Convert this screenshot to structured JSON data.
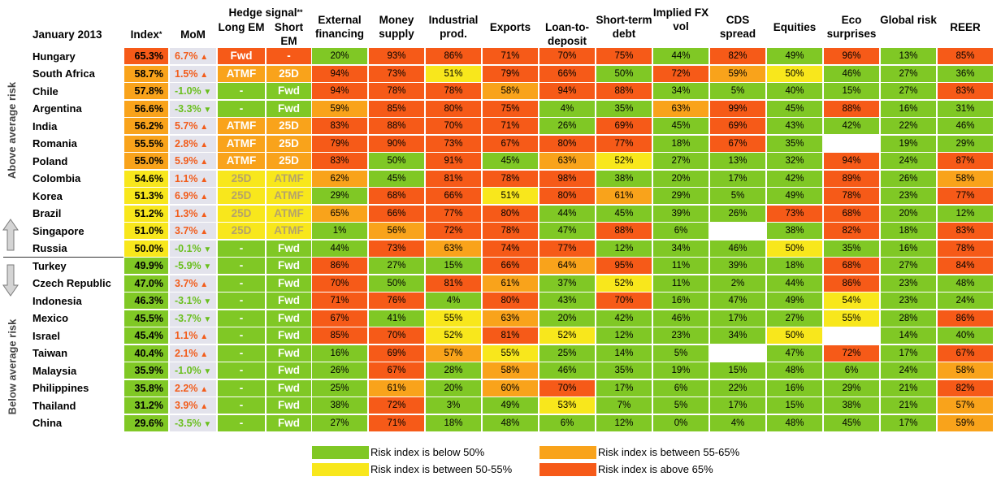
{
  "colors": {
    "green": "#80c825",
    "yellow": "#f8e71c",
    "orange": "#f9a31b",
    "red": "#f65a18",
    "white": "#ffffff",
    "mom_bg": "#e3e3ec",
    "up": "#f25d1c",
    "down": "#6abf1e",
    "hedge_muted": "#b5a36a"
  },
  "side_labels": {
    "above": "Above average risk",
    "below": "Below average risk"
  },
  "headers": {
    "corner": "January 2013",
    "index": "Index",
    "index_sup": "*",
    "mom": "MoM",
    "hedge_title": "Hedge signal",
    "hedge_sup": "**",
    "long_em": "Long EM",
    "short_em": "Short EM",
    "columns": [
      "External financing",
      "Money supply",
      "Industrial prod.",
      "Exports",
      "Loan-to-deposit",
      "Short-term debt",
      "Implied FX vol",
      "CDS spread",
      "Equities",
      "Eco surprises",
      "Global risk",
      "REER"
    ]
  },
  "legend": [
    {
      "color": "green",
      "label": "Risk index is below 50%"
    },
    {
      "color": "yellow",
      "label": "Risk index is between 50-55%"
    },
    {
      "color": "orange",
      "label": "Risk index is between 55-65%"
    },
    {
      "color": "red",
      "label": "Risk index is above 65%"
    }
  ],
  "chart_data": {
    "type": "table",
    "title": "January 2013",
    "rows": [
      {
        "country": "Hungary",
        "index": "65.3%",
        "index_color": "red",
        "mom": "6.7%",
        "mom_dir": "up",
        "long": "Fwd",
        "long_color": "red",
        "short": "-",
        "short_color": "red",
        "values": [
          "20%",
          "93%",
          "86%",
          "71%",
          "70%",
          "75%",
          "44%",
          "82%",
          "49%",
          "96%",
          "13%",
          "85%"
        ],
        "colors": [
          "green",
          "red",
          "red",
          "red",
          "red",
          "red",
          "green",
          "red",
          "green",
          "red",
          "green",
          "red"
        ]
      },
      {
        "country": "South Africa",
        "index": "58.7%",
        "index_color": "orange",
        "mom": "1.5%",
        "mom_dir": "up",
        "long": "ATMF",
        "long_color": "orange",
        "short": "25D",
        "short_color": "orange",
        "values": [
          "94%",
          "73%",
          "51%",
          "79%",
          "66%",
          "50%",
          "72%",
          "59%",
          "50%",
          "46%",
          "27%",
          "36%"
        ],
        "colors": [
          "red",
          "red",
          "yellow",
          "red",
          "red",
          "green",
          "red",
          "orange",
          "yellow",
          "green",
          "green",
          "green"
        ]
      },
      {
        "country": "Chile",
        "index": "57.8%",
        "index_color": "orange",
        "mom": "-1.0%",
        "mom_dir": "down",
        "long": "-",
        "long_color": "green",
        "short": "Fwd",
        "short_color": "green",
        "values": [
          "94%",
          "78%",
          "78%",
          "58%",
          "94%",
          "88%",
          "34%",
          "5%",
          "40%",
          "15%",
          "27%",
          "83%"
        ],
        "colors": [
          "red",
          "red",
          "red",
          "orange",
          "red",
          "red",
          "green",
          "green",
          "green",
          "green",
          "green",
          "red"
        ]
      },
      {
        "country": "Argentina",
        "index": "56.6%",
        "index_color": "orange",
        "mom": "-3.3%",
        "mom_dir": "down",
        "long": "-",
        "long_color": "green",
        "short": "Fwd",
        "short_color": "green",
        "values": [
          "59%",
          "85%",
          "80%",
          "75%",
          "4%",
          "35%",
          "63%",
          "99%",
          "45%",
          "88%",
          "16%",
          "31%"
        ],
        "colors": [
          "orange",
          "red",
          "red",
          "red",
          "green",
          "green",
          "orange",
          "red",
          "green",
          "red",
          "green",
          "green"
        ]
      },
      {
        "country": "India",
        "index": "56.2%",
        "index_color": "orange",
        "mom": "5.7%",
        "mom_dir": "up",
        "long": "ATMF",
        "long_color": "orange",
        "short": "25D",
        "short_color": "orange",
        "values": [
          "83%",
          "88%",
          "70%",
          "71%",
          "26%",
          "69%",
          "45%",
          "69%",
          "43%",
          "42%",
          "22%",
          "46%"
        ],
        "colors": [
          "red",
          "red",
          "red",
          "red",
          "green",
          "red",
          "green",
          "red",
          "green",
          "green",
          "green",
          "green"
        ]
      },
      {
        "country": "Romania",
        "index": "55.5%",
        "index_color": "orange",
        "mom": "2.8%",
        "mom_dir": "up",
        "long": "ATMF",
        "long_color": "orange",
        "short": "25D",
        "short_color": "orange",
        "values": [
          "79%",
          "90%",
          "73%",
          "67%",
          "80%",
          "77%",
          "18%",
          "67%",
          "35%",
          "",
          "19%",
          "29%"
        ],
        "colors": [
          "red",
          "red",
          "red",
          "red",
          "red",
          "red",
          "green",
          "red",
          "green",
          "white",
          "green",
          "green"
        ]
      },
      {
        "country": "Poland",
        "index": "55.0%",
        "index_color": "orange",
        "mom": "5.9%",
        "mom_dir": "up",
        "long": "ATMF",
        "long_color": "orange",
        "short": "25D",
        "short_color": "orange",
        "values": [
          "83%",
          "50%",
          "91%",
          "45%",
          "63%",
          "52%",
          "27%",
          "13%",
          "32%",
          "94%",
          "24%",
          "87%"
        ],
        "colors": [
          "red",
          "green",
          "red",
          "green",
          "orange",
          "yellow",
          "green",
          "green",
          "green",
          "red",
          "green",
          "red"
        ]
      },
      {
        "country": "Colombia",
        "index": "54.6%",
        "index_color": "yellow",
        "mom": "1.1%",
        "mom_dir": "up",
        "long": "25D",
        "long_color": "yellow",
        "short": "ATMF",
        "short_color": "yellow",
        "values": [
          "62%",
          "45%",
          "81%",
          "78%",
          "98%",
          "38%",
          "20%",
          "17%",
          "42%",
          "89%",
          "26%",
          "58%"
        ],
        "colors": [
          "orange",
          "green",
          "red",
          "red",
          "red",
          "green",
          "green",
          "green",
          "green",
          "red",
          "green",
          "orange"
        ]
      },
      {
        "country": "Korea",
        "index": "51.3%",
        "index_color": "yellow",
        "mom": "6.9%",
        "mom_dir": "up",
        "long": "25D",
        "long_color": "yellow",
        "short": "ATMF",
        "short_color": "yellow",
        "values": [
          "29%",
          "68%",
          "66%",
          "51%",
          "80%",
          "61%",
          "29%",
          "5%",
          "49%",
          "78%",
          "23%",
          "77%"
        ],
        "colors": [
          "green",
          "red",
          "red",
          "yellow",
          "red",
          "orange",
          "green",
          "green",
          "green",
          "red",
          "green",
          "red"
        ]
      },
      {
        "country": "Brazil",
        "index": "51.2%",
        "index_color": "yellow",
        "mom": "1.3%",
        "mom_dir": "up",
        "long": "25D",
        "long_color": "yellow",
        "short": "ATMF",
        "short_color": "yellow",
        "values": [
          "65%",
          "66%",
          "77%",
          "80%",
          "44%",
          "45%",
          "39%",
          "26%",
          "73%",
          "68%",
          "20%",
          "12%"
        ],
        "colors": [
          "orange",
          "red",
          "red",
          "red",
          "green",
          "green",
          "green",
          "green",
          "red",
          "red",
          "green",
          "green"
        ]
      },
      {
        "country": "Singapore",
        "index": "51.0%",
        "index_color": "yellow",
        "mom": "3.7%",
        "mom_dir": "up",
        "long": "25D",
        "long_color": "yellow",
        "short": "ATMF",
        "short_color": "yellow",
        "values": [
          "1%",
          "56%",
          "72%",
          "78%",
          "47%",
          "88%",
          "6%",
          "",
          "38%",
          "82%",
          "18%",
          "83%"
        ],
        "colors": [
          "green",
          "orange",
          "red",
          "red",
          "green",
          "red",
          "green",
          "white",
          "green",
          "red",
          "green",
          "red"
        ]
      },
      {
        "country": "Russia",
        "index": "50.0%",
        "index_color": "yellow",
        "mom": "-0.1%",
        "mom_dir": "down",
        "long": "-",
        "long_color": "green",
        "short": "Fwd",
        "short_color": "green",
        "values": [
          "44%",
          "73%",
          "63%",
          "74%",
          "77%",
          "12%",
          "34%",
          "46%",
          "50%",
          "35%",
          "16%",
          "78%"
        ],
        "colors": [
          "green",
          "red",
          "orange",
          "red",
          "red",
          "green",
          "green",
          "green",
          "yellow",
          "green",
          "green",
          "red"
        ]
      },
      {
        "country": "Turkey",
        "index": "49.9%",
        "index_color": "green",
        "mom": "-5.9%",
        "mom_dir": "down",
        "long": "-",
        "long_color": "green",
        "short": "Fwd",
        "short_color": "green",
        "values": [
          "86%",
          "27%",
          "15%",
          "66%",
          "64%",
          "95%",
          "11%",
          "39%",
          "18%",
          "68%",
          "27%",
          "84%"
        ],
        "colors": [
          "red",
          "green",
          "green",
          "red",
          "orange",
          "red",
          "green",
          "green",
          "green",
          "red",
          "green",
          "red"
        ]
      },
      {
        "country": "Czech Republic",
        "index": "47.0%",
        "index_color": "green",
        "mom": "3.7%",
        "mom_dir": "up",
        "long": "-",
        "long_color": "green",
        "short": "Fwd",
        "short_color": "green",
        "values": [
          "70%",
          "50%",
          "81%",
          "61%",
          "37%",
          "52%",
          "11%",
          "2%",
          "44%",
          "86%",
          "23%",
          "48%"
        ],
        "colors": [
          "red",
          "green",
          "red",
          "orange",
          "green",
          "yellow",
          "green",
          "green",
          "green",
          "red",
          "green",
          "green"
        ]
      },
      {
        "country": "Indonesia",
        "index": "46.3%",
        "index_color": "green",
        "mom": "-3.1%",
        "mom_dir": "down",
        "long": "-",
        "long_color": "green",
        "short": "Fwd",
        "short_color": "green",
        "values": [
          "71%",
          "76%",
          "4%",
          "80%",
          "43%",
          "70%",
          "16%",
          "47%",
          "49%",
          "54%",
          "23%",
          "24%"
        ],
        "colors": [
          "red",
          "red",
          "green",
          "red",
          "green",
          "red",
          "green",
          "green",
          "green",
          "yellow",
          "green",
          "green"
        ]
      },
      {
        "country": "Mexico",
        "index": "45.5%",
        "index_color": "green",
        "mom": "-3.7%",
        "mom_dir": "down",
        "long": "-",
        "long_color": "green",
        "short": "Fwd",
        "short_color": "green",
        "values": [
          "67%",
          "41%",
          "55%",
          "63%",
          "20%",
          "42%",
          "46%",
          "17%",
          "27%",
          "55%",
          "28%",
          "86%"
        ],
        "colors": [
          "red",
          "green",
          "yellow",
          "orange",
          "green",
          "green",
          "green",
          "green",
          "green",
          "yellow",
          "green",
          "red"
        ]
      },
      {
        "country": "Israel",
        "index": "45.4%",
        "index_color": "green",
        "mom": "1.1%",
        "mom_dir": "up",
        "long": "-",
        "long_color": "green",
        "short": "Fwd",
        "short_color": "green",
        "values": [
          "85%",
          "70%",
          "52%",
          "81%",
          "52%",
          "12%",
          "23%",
          "34%",
          "50%",
          "",
          "14%",
          "40%"
        ],
        "colors": [
          "red",
          "red",
          "yellow",
          "red",
          "yellow",
          "green",
          "green",
          "green",
          "yellow",
          "white",
          "green",
          "green"
        ]
      },
      {
        "country": "Taiwan",
        "index": "40.4%",
        "index_color": "green",
        "mom": "2.1%",
        "mom_dir": "up",
        "long": "-",
        "long_color": "green",
        "short": "Fwd",
        "short_color": "green",
        "values": [
          "16%",
          "69%",
          "57%",
          "55%",
          "25%",
          "14%",
          "5%",
          "",
          "47%",
          "72%",
          "17%",
          "67%"
        ],
        "colors": [
          "green",
          "red",
          "orange",
          "yellow",
          "green",
          "green",
          "green",
          "white",
          "green",
          "red",
          "green",
          "red"
        ]
      },
      {
        "country": "Malaysia",
        "index": "35.9%",
        "index_color": "green",
        "mom": "-1.0%",
        "mom_dir": "down",
        "long": "-",
        "long_color": "green",
        "short": "Fwd",
        "short_color": "green",
        "values": [
          "26%",
          "67%",
          "28%",
          "58%",
          "46%",
          "35%",
          "19%",
          "15%",
          "48%",
          "6%",
          "24%",
          "58%"
        ],
        "colors": [
          "green",
          "red",
          "green",
          "orange",
          "green",
          "green",
          "green",
          "green",
          "green",
          "green",
          "green",
          "orange"
        ]
      },
      {
        "country": "Philippines",
        "index": "35.8%",
        "index_color": "green",
        "mom": "2.2%",
        "mom_dir": "up",
        "long": "-",
        "long_color": "green",
        "short": "Fwd",
        "short_color": "green",
        "values": [
          "25%",
          "61%",
          "20%",
          "60%",
          "70%",
          "17%",
          "6%",
          "22%",
          "16%",
          "29%",
          "21%",
          "82%"
        ],
        "colors": [
          "green",
          "orange",
          "green",
          "orange",
          "red",
          "green",
          "green",
          "green",
          "green",
          "green",
          "green",
          "red"
        ]
      },
      {
        "country": "Thailand",
        "index": "31.2%",
        "index_color": "green",
        "mom": "3.9%",
        "mom_dir": "up",
        "long": "-",
        "long_color": "green",
        "short": "Fwd",
        "short_color": "green",
        "values": [
          "38%",
          "72%",
          "3%",
          "49%",
          "53%",
          "7%",
          "5%",
          "17%",
          "15%",
          "38%",
          "21%",
          "57%"
        ],
        "colors": [
          "green",
          "red",
          "green",
          "green",
          "yellow",
          "green",
          "green",
          "green",
          "green",
          "green",
          "green",
          "orange"
        ]
      },
      {
        "country": "China",
        "index": "29.6%",
        "index_color": "green",
        "mom": "-3.5%",
        "mom_dir": "down",
        "long": "-",
        "long_color": "green",
        "short": "Fwd",
        "short_color": "green",
        "values": [
          "27%",
          "71%",
          "18%",
          "48%",
          "6%",
          "12%",
          "0%",
          "4%",
          "48%",
          "45%",
          "17%",
          "59%"
        ],
        "colors": [
          "green",
          "red",
          "green",
          "green",
          "green",
          "green",
          "green",
          "green",
          "green",
          "green",
          "green",
          "orange"
        ]
      }
    ]
  }
}
